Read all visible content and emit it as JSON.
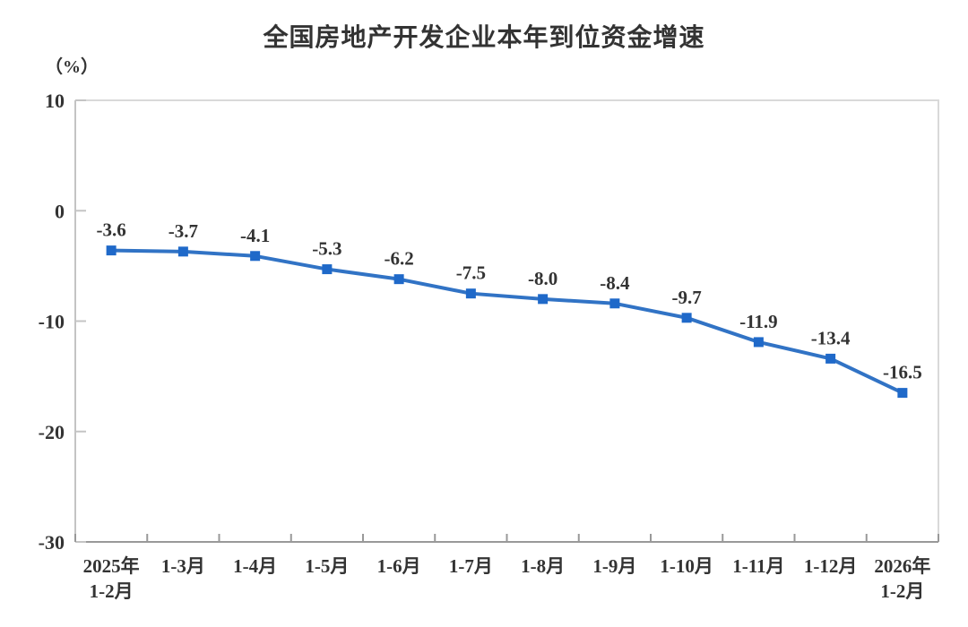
{
  "chart_data": {
    "type": "line",
    "title": "全国房地产开发企业本年到位资金增速",
    "unit_label": "（%）",
    "categories": [
      "2025年\n1-2月",
      "1-3月",
      "1-4月",
      "1-5月",
      "1-6月",
      "1-7月",
      "1-8月",
      "1-9月",
      "1-10月",
      "1-11月",
      "1-12月",
      "2026年\n1-2月"
    ],
    "series": [
      {
        "name": "本年到位资金增速",
        "values": [
          -3.6,
          -3.7,
          -4.1,
          -5.3,
          -6.2,
          -7.5,
          -8.0,
          -8.4,
          -9.7,
          -11.9,
          -13.4,
          -16.5
        ],
        "data_labels": [
          "-3.6",
          "-3.7",
          "-4.1",
          "-5.3",
          "-6.2",
          "-7.5",
          "-8.0",
          "-8.4",
          "-9.7",
          "-11.9",
          "-13.4",
          "-16.5"
        ]
      }
    ],
    "ylim": [
      -30,
      10
    ],
    "y_ticks": [
      10,
      0,
      -10,
      -20,
      -30
    ],
    "grid": false,
    "legend_position": "none",
    "marker_shape": "square",
    "colors": {
      "line": "#3173C5",
      "marker": "#1F69C9",
      "plot_border": "#D9D9D9",
      "y_axis": "#C4C4C4",
      "x_axis": "#999999",
      "text": "#333333"
    }
  }
}
